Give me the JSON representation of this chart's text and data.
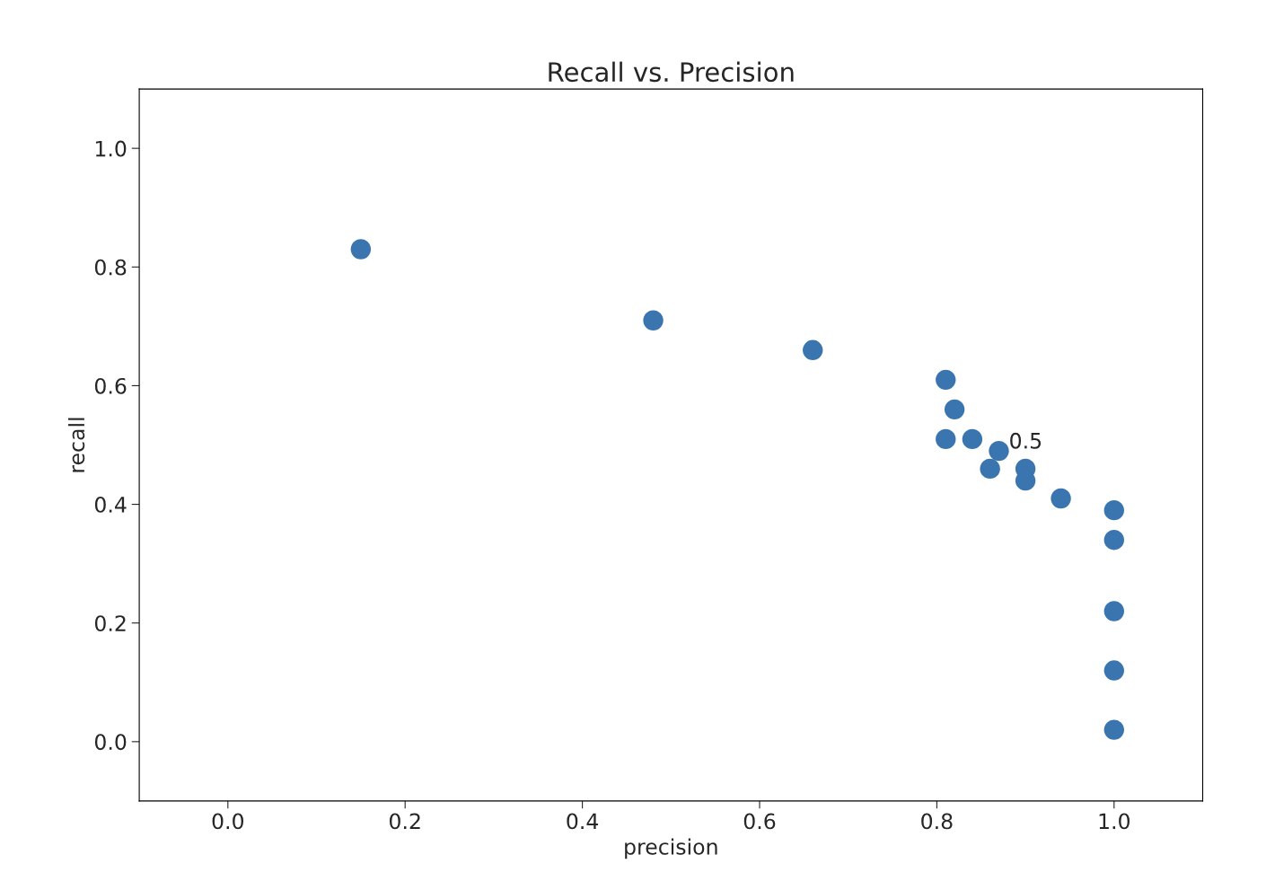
{
  "chart_data": {
    "type": "scatter",
    "title": "Recall vs. Precision",
    "xlabel": "precision",
    "ylabel": "recall",
    "x": [
      0.15,
      0.48,
      0.66,
      0.81,
      0.82,
      0.81,
      0.84,
      0.87,
      0.9,
      0.86,
      0.9,
      0.94,
      1.0,
      1.0,
      1.0,
      1.0,
      1.0
    ],
    "series": [
      {
        "color": "#3a75b0",
        "values": [
          0.83,
          0.71,
          0.66,
          0.61,
          0.56,
          0.51,
          0.51,
          0.49,
          0.46,
          0.46,
          0.44,
          0.41,
          0.39,
          0.34,
          0.22,
          0.12,
          0.02
        ]
      }
    ],
    "xlim": [
      -0.1,
      1.1
    ],
    "ylim": [
      -0.1,
      1.1
    ],
    "xticks": [
      {
        "value": 0,
        "label": "0.0"
      },
      0.2,
      0.4,
      0.6,
      0.8,
      {
        "value": 1,
        "label": "1.0"
      }
    ],
    "yticks": [
      {
        "value": 0,
        "label": "0.0"
      },
      0.2,
      0.4,
      0.6,
      0.8,
      {
        "value": 1,
        "label": "1.0"
      }
    ],
    "annotations": [
      {
        "text": "0.5",
        "x": 0.87,
        "y": 0.49
      }
    ],
    "grid": false,
    "legend": false,
    "marker": "circle"
  }
}
